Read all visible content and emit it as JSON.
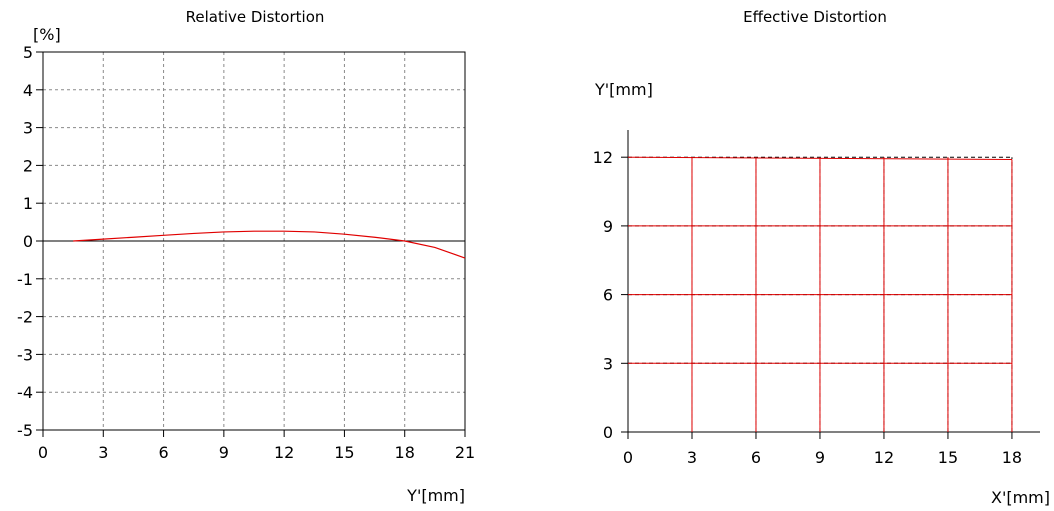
{
  "chart_data": [
    {
      "type": "line",
      "title": "Relative Distortion",
      "ylabel": "[%]",
      "xlabel": "Y'[mm]",
      "xlim": [
        0,
        21
      ],
      "ylim": [
        -5,
        5
      ],
      "x_ticks": [
        "0",
        "3",
        "6",
        "9",
        "12",
        "15",
        "18",
        "21"
      ],
      "y_ticks": [
        "5",
        "4",
        "3",
        "2",
        "1",
        "0",
        "-1",
        "-2",
        "-3",
        "-4",
        "-5"
      ],
      "grid": true,
      "series": [
        {
          "color": "#e00000",
          "x": [
            1.5,
            3,
            4.5,
            6,
            7.5,
            9,
            10.5,
            12,
            13.5,
            15,
            16.5,
            18,
            19.5,
            21
          ],
          "y": [
            0.0,
            0.05,
            0.1,
            0.15,
            0.2,
            0.24,
            0.26,
            0.26,
            0.24,
            0.18,
            0.1,
            0.0,
            -0.17,
            -0.45
          ]
        }
      ]
    },
    {
      "type": "line",
      "title": "Effective Distortion",
      "ylabel": "Y'[mm]",
      "xlabel": "X'[mm]",
      "xlim": [
        0,
        19.3
      ],
      "ylim": [
        0,
        13.2
      ],
      "x_ticks": [
        "0",
        "3",
        "6",
        "9",
        "12",
        "15",
        "18"
      ],
      "y_ticks": [
        "12",
        "9",
        "6",
        "3",
        "0"
      ],
      "grid_x": [
        3,
        6,
        9,
        12,
        15,
        18
      ],
      "grid_y": [
        3,
        6,
        9,
        12
      ],
      "ideal_color": "#000000",
      "real_color": "#e00000",
      "corner_bulge": [
        18.0,
        11.9
      ]
    }
  ]
}
